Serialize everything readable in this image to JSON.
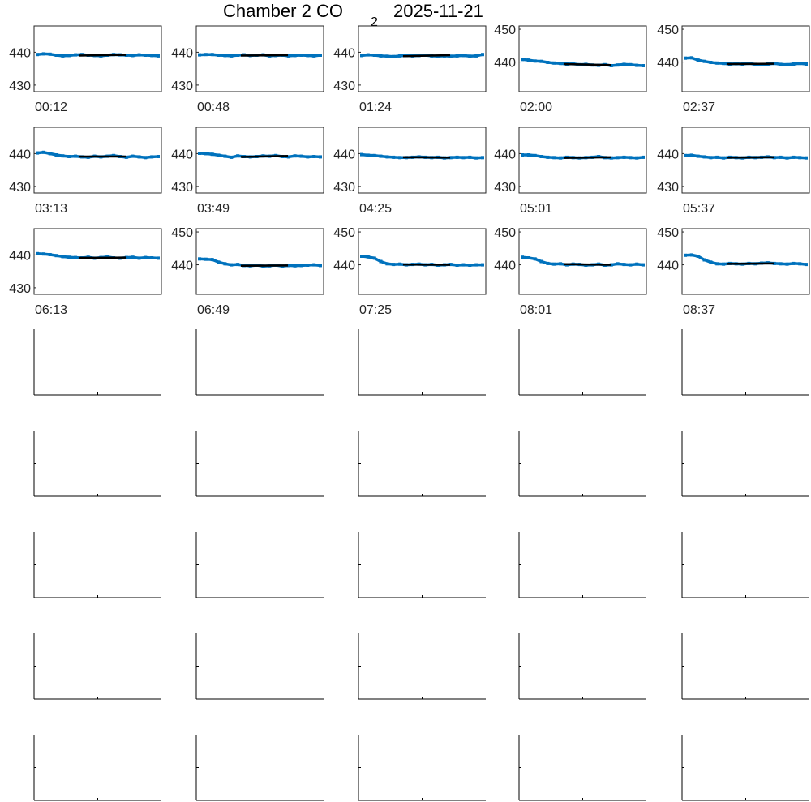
{
  "figure": {
    "title_main": "Chamber 2 CO",
    "title_subscript": "2",
    "title_date": "2025-11-21"
  },
  "colors": {
    "series": "#0072bd",
    "fit": "#000000",
    "axes": "#262626",
    "empty_axes": "#000000"
  },
  "chart_data": {
    "type": "line",
    "grid": false,
    "legend": "none",
    "rows": 8,
    "cols": 5,
    "panels": [
      {
        "time_label": "00:12",
        "ylim": [
          428,
          448
        ],
        "yticks": [
          "430",
          "440"
        ],
        "series": [
          439.3,
          439.5,
          439.4,
          439.1,
          438.9,
          439.0,
          439.2,
          439.3,
          439.1,
          439.0,
          438.9,
          439.1,
          439.3,
          439.2,
          439.1,
          439.0,
          439.2,
          439.1,
          439.0,
          438.9
        ],
        "fit": {
          "x": [
            0.35,
            0.72
          ],
          "y": [
            439.0,
            439.2
          ]
        }
      },
      {
        "time_label": "00:48",
        "ylim": [
          428,
          448
        ],
        "yticks": [
          "430",
          "440"
        ],
        "series": [
          439.2,
          439.3,
          439.3,
          439.1,
          439.0,
          438.9,
          439.1,
          439.2,
          439.0,
          439.1,
          439.2,
          438.9,
          439.0,
          439.1,
          438.9,
          439.0,
          439.1,
          439.0,
          438.9,
          439.1
        ],
        "fit": {
          "x": [
            0.35,
            0.72
          ],
          "y": [
            439.0,
            439.1
          ]
        }
      },
      {
        "time_label": "01:24",
        "ylim": [
          428,
          448
        ],
        "yticks": [
          "430",
          "440"
        ],
        "series": [
          439.0,
          439.2,
          439.1,
          438.9,
          438.8,
          438.7,
          438.9,
          439.0,
          438.9,
          439.0,
          439.1,
          438.9,
          438.8,
          438.9,
          438.8,
          438.9,
          439.0,
          438.8,
          438.9,
          439.3
        ],
        "fit": {
          "x": [
            0.35,
            0.72
          ],
          "y": [
            438.8,
            439.1
          ]
        }
      },
      {
        "time_label": "02:00",
        "ylim": [
          431,
          451
        ],
        "yticks": [
          "440",
          "450"
        ],
        "series": [
          440.8,
          440.6,
          440.3,
          440.2,
          439.9,
          439.7,
          439.6,
          439.4,
          439.5,
          439.2,
          439.3,
          439.1,
          439.0,
          439.2,
          438.9,
          439.1,
          439.3,
          439.2,
          439.0,
          438.9
        ],
        "fit": {
          "x": [
            0.35,
            0.72
          ],
          "y": [
            439.4,
            439.1
          ]
        }
      },
      {
        "time_label": "02:37",
        "ylim": [
          431,
          451
        ],
        "yticks": [
          "440",
          "450"
        ],
        "series": [
          441.2,
          441.3,
          440.6,
          440.2,
          439.9,
          439.7,
          439.6,
          439.4,
          439.5,
          439.4,
          439.6,
          439.3,
          439.2,
          439.4,
          439.6,
          439.3,
          439.2,
          439.4,
          439.6,
          439.4
        ],
        "fit": {
          "x": [
            0.35,
            0.72
          ],
          "y": [
            439.4,
            439.5
          ]
        }
      },
      {
        "time_label": "03:13",
        "ylim": [
          428,
          448
        ],
        "yticks": [
          "430",
          "440"
        ],
        "series": [
          440.2,
          440.4,
          440.0,
          439.6,
          439.3,
          439.1,
          439.2,
          439.0,
          438.9,
          439.2,
          439.0,
          439.2,
          439.4,
          439.1,
          438.9,
          439.2,
          439.0,
          438.8,
          439.0,
          439.1
        ],
        "fit": {
          "x": [
            0.35,
            0.72
          ],
          "y": [
            439.1,
            439.1
          ]
        }
      },
      {
        "time_label": "03:49",
        "ylim": [
          428,
          448
        ],
        "yticks": [
          "430",
          "440"
        ],
        "series": [
          440.1,
          440.0,
          439.8,
          439.5,
          439.2,
          438.9,
          439.3,
          439.1,
          439.0,
          439.1,
          439.3,
          439.2,
          439.4,
          439.1,
          439.0,
          439.3,
          439.2,
          439.0,
          439.1,
          439.0
        ],
        "fit": {
          "x": [
            0.35,
            0.72
          ],
          "y": [
            439.0,
            439.3
          ]
        }
      },
      {
        "time_label": "04:25",
        "ylim": [
          428,
          448
        ],
        "yticks": [
          "430",
          "440"
        ],
        "series": [
          439.7,
          439.5,
          439.4,
          439.2,
          439.0,
          438.9,
          438.8,
          438.8,
          438.9,
          439.0,
          438.9,
          438.8,
          438.9,
          438.7,
          438.8,
          438.9,
          438.8,
          438.9,
          438.7,
          438.8
        ],
        "fit": {
          "x": [
            0.35,
            0.72
          ],
          "y": [
            438.9,
            438.8
          ]
        }
      },
      {
        "time_label": "05:01",
        "ylim": [
          428,
          448
        ],
        "yticks": [
          "430",
          "440"
        ],
        "series": [
          439.6,
          439.6,
          439.4,
          439.1,
          438.9,
          438.8,
          438.7,
          438.9,
          438.8,
          438.7,
          438.8,
          438.9,
          439.1,
          438.8,
          438.7,
          438.8,
          438.9,
          438.8,
          438.7,
          438.9
        ],
        "fit": {
          "x": [
            0.35,
            0.72
          ],
          "y": [
            438.7,
            438.9
          ]
        }
      },
      {
        "time_label": "05:37",
        "ylim": [
          428,
          448
        ],
        "yticks": [
          "430",
          "440"
        ],
        "series": [
          439.4,
          439.5,
          439.2,
          439.0,
          438.8,
          438.9,
          438.7,
          438.9,
          438.8,
          438.7,
          438.9,
          438.8,
          438.9,
          439.0,
          438.8,
          438.9,
          438.7,
          438.9,
          438.8,
          438.7
        ],
        "fit": {
          "x": [
            0.35,
            0.72
          ],
          "y": [
            438.8,
            438.9
          ]
        }
      },
      {
        "time_label": "06:13",
        "ylim": [
          428,
          448
        ],
        "yticks": [
          "430",
          "440"
        ],
        "series": [
          440.4,
          440.3,
          440.1,
          439.8,
          439.5,
          439.3,
          439.2,
          439.1,
          439.3,
          439.0,
          439.2,
          439.4,
          439.1,
          439.0,
          439.2,
          439.3,
          439.0,
          439.2,
          439.1,
          439.0
        ],
        "fit": {
          "x": [
            0.35,
            0.72
          ],
          "y": [
            439.1,
            439.2
          ]
        }
      },
      {
        "time_label": "06:49",
        "ylim": [
          431,
          451
        ],
        "yticks": [
          "440",
          "450"
        ],
        "series": [
          441.8,
          441.7,
          441.6,
          440.8,
          440.3,
          440.0,
          440.1,
          439.8,
          439.7,
          439.9,
          439.6,
          439.7,
          439.9,
          439.6,
          439.8,
          439.7,
          439.8,
          439.9,
          440.0,
          439.8
        ],
        "fit": {
          "x": [
            0.35,
            0.72
          ],
          "y": [
            439.7,
            439.8
          ]
        }
      },
      {
        "time_label": "07:25",
        "ylim": [
          431,
          451
        ],
        "yticks": [
          "440",
          "450"
        ],
        "series": [
          442.6,
          442.4,
          442.0,
          441.0,
          440.3,
          440.1,
          440.2,
          440.0,
          440.1,
          440.2,
          440.0,
          440.1,
          439.9,
          440.0,
          440.1,
          439.9,
          440.0,
          439.9,
          440.0,
          440.0
        ],
        "fit": {
          "x": [
            0.35,
            0.72
          ],
          "y": [
            440.1,
            440.0
          ]
        }
      },
      {
        "time_label": "08:01",
        "ylim": [
          431,
          451
        ],
        "yticks": [
          "440",
          "450"
        ],
        "series": [
          442.3,
          442.1,
          441.8,
          441.0,
          440.4,
          440.2,
          440.3,
          440.0,
          440.2,
          440.1,
          439.9,
          440.0,
          440.2,
          439.9,
          440.0,
          440.3,
          440.1,
          440.0,
          440.2,
          440.0
        ],
        "fit": {
          "x": [
            0.35,
            0.72
          ],
          "y": [
            440.2,
            440.0
          ]
        }
      },
      {
        "time_label": "08:37",
        "ylim": [
          431,
          451
        ],
        "yticks": [
          "440",
          "450"
        ],
        "series": [
          442.9,
          443.0,
          442.6,
          441.5,
          440.8,
          440.3,
          440.2,
          440.4,
          440.3,
          440.2,
          440.4,
          440.3,
          440.5,
          440.6,
          440.4,
          440.3,
          440.2,
          440.4,
          440.3,
          440.1
        ],
        "fit": {
          "x": [
            0.35,
            0.72
          ],
          "y": [
            440.3,
            440.4
          ]
        }
      }
    ]
  }
}
